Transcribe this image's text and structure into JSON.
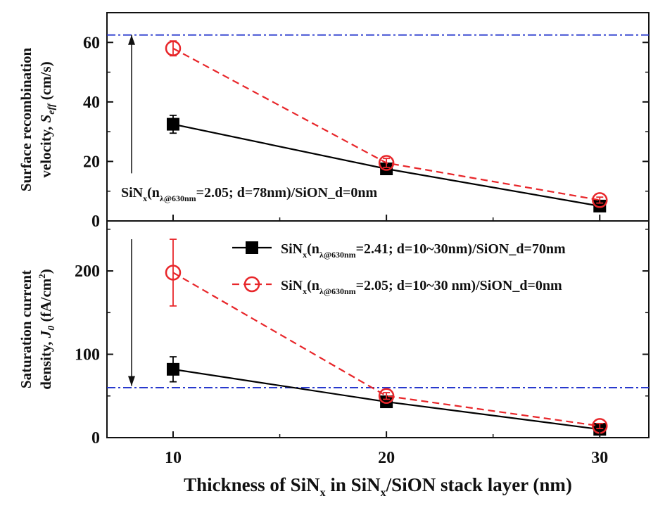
{
  "chart_data": [
    {
      "type": "line",
      "panel": "top",
      "ylabel": {
        "main": "Surface recombination",
        "line2": "velocity, ",
        "sym": "S",
        "sub": "eff",
        "unit": " (cm/s)"
      },
      "ylim": [
        0,
        70
      ],
      "yticks": [
        0,
        20,
        40,
        60
      ],
      "x": [
        10,
        20,
        30
      ],
      "xlim": [
        6.9,
        32.3
      ],
      "series": [
        {
          "name_ref": "legend.0",
          "color": "#000000",
          "marker": "filled-square",
          "line": "solid",
          "values": [
            32.5,
            17.5,
            5.0
          ],
          "errors": [
            3.0,
            1.5,
            1.0
          ]
        },
        {
          "name_ref": "legend.1",
          "color": "#e8262a",
          "marker": "open-circle",
          "line": "dashed",
          "values": [
            58.0,
            19.5,
            7.0
          ],
          "errors": [
            2.5,
            1.5,
            1.0
          ]
        }
      ],
      "reference_line": {
        "y": 62.5,
        "color": "#2233cc",
        "style": "dash-dot"
      },
      "annotation": {
        "pre": "SiN",
        "x_sub": "x",
        "open": "(n",
        "n_sub": "λ@630nm",
        "rest": "=2.05; d=78nm)/SiON_d=0nm"
      },
      "arrow": {
        "from": 62.5,
        "to": 16,
        "direction": "up"
      }
    },
    {
      "type": "line",
      "panel": "bottom",
      "ylabel": {
        "main": "Saturation current",
        "line2": "density, ",
        "sym": "J",
        "sub": "0",
        "unit": " (fA/cm",
        "sup": "2",
        "close": ")"
      },
      "ylim": [
        0,
        260
      ],
      "yticks": [
        0,
        100,
        200
      ],
      "x": [
        10,
        20,
        30
      ],
      "xlim": [
        6.9,
        32.3
      ],
      "xticks": [
        10,
        20,
        30
      ],
      "xlabel": {
        "pre": "Thickness of SiN",
        "x1": "x",
        "mid": " in SiN",
        "x2": "x",
        "post": "/SiON stack layer (nm)"
      },
      "series": [
        {
          "name_ref": "legend.0",
          "color": "#000000",
          "marker": "filled-square",
          "line": "solid",
          "values": [
            82,
            43,
            10
          ],
          "errors": [
            15,
            3,
            3
          ]
        },
        {
          "name_ref": "legend.1",
          "color": "#e8262a",
          "marker": "open-circle",
          "line": "dashed",
          "values": [
            198,
            50,
            14
          ],
          "errors": [
            40,
            4,
            3
          ]
        }
      ],
      "reference_line": {
        "y": 60,
        "color": "#2233cc",
        "style": "dash-dot"
      },
      "arrow": {
        "from": 238,
        "to": 62,
        "direction": "down"
      },
      "legend": [
        {
          "pre": "SiN",
          "x_sub": "x",
          "open": "(n",
          "n_sub": "λ@630nm",
          "rest": "=2.41; d=10~30nm)/SiON_d=70nm"
        },
        {
          "pre": "SiN",
          "x_sub": "x",
          "open": "(n",
          "n_sub": "λ@630nm",
          "rest": "=2.05; d=10~30 nm)/SiON_d=0nm"
        }
      ],
      "legend_placement": "top-right"
    }
  ]
}
